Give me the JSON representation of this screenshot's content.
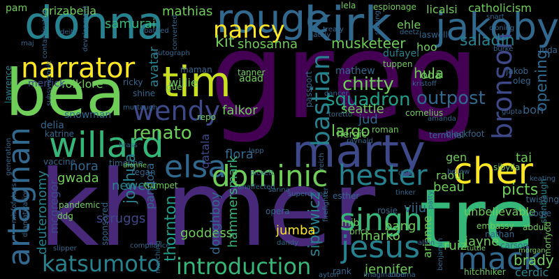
{
  "background": "#000000",
  "words": [
    {
      "text": "greg",
      "color": "#440154"
    },
    {
      "text": "khmer",
      "color": "#482878"
    },
    {
      "text": "donna",
      "color": "#26828e"
    },
    {
      "text": "kirk",
      "color": "#31688e"
    },
    {
      "text": "rouge",
      "color": "#31688e"
    },
    {
      "text": "jakoby",
      "color": "#31688e"
    },
    {
      "text": "bea",
      "color": "#6ece58"
    },
    {
      "text": "tre",
      "color": "#35b779"
    },
    {
      "text": "marty",
      "color": "#3e4989"
    },
    {
      "text": "tim",
      "color": "#c8e020"
    },
    {
      "text": "narrator",
      "color": "#fde725"
    },
    {
      "text": "nancy",
      "color": "#fde725"
    },
    {
      "text": "willard",
      "color": "#35b779"
    },
    {
      "text": "wendy",
      "color": "#3e4989"
    },
    {
      "text": "elsa",
      "color": "#31688e"
    },
    {
      "text": "cher",
      "color": "#fde725"
    },
    {
      "text": "artagnan",
      "color": "#31688e"
    },
    {
      "text": "dominic",
      "color": "#6ece58"
    },
    {
      "text": "hester",
      "color": "#26828e"
    },
    {
      "text": "jesus",
      "color": "#26828e"
    },
    {
      "text": "mack",
      "color": "#31688e"
    },
    {
      "text": "singh",
      "color": "#35b779"
    },
    {
      "text": "bastian",
      "color": "#26828e"
    },
    {
      "text": "bronson",
      "color": "#3e4989"
    },
    {
      "text": "katsumoto",
      "color": "#26828e"
    },
    {
      "text": "introduction",
      "color": "#35b779"
    },
    {
      "text": "renato",
      "color": "#6ece58"
    },
    {
      "text": "chitty",
      "color": "#6ece58"
    },
    {
      "text": "squadron",
      "color": "#1f9e89"
    },
    {
      "text": "outpost",
      "color": "#31688e"
    },
    {
      "text": "musketeer",
      "color": "#6ece58"
    },
    {
      "text": "kit",
      "color": "#6ece58"
    },
    {
      "text": "shosanna",
      "color": "#6ece58"
    },
    {
      "text": "saladin",
      "color": "#26828e"
    },
    {
      "text": "samurai",
      "color": "#35b779"
    },
    {
      "text": "mathias",
      "color": "#6ece58"
    },
    {
      "text": "grizabella",
      "color": "#6ece58"
    },
    {
      "text": "pam",
      "color": "#6ece58"
    },
    {
      "text": "folklore",
      "color": "#6ece58"
    },
    {
      "text": "merrick",
      "color": "#3e4989"
    },
    {
      "text": "mathew",
      "color": "#31688e"
    },
    {
      "text": "jud",
      "color": "#31688e"
    },
    {
      "text": "seattle",
      "color": "#6ece58"
    },
    {
      "text": "hula",
      "color": "#6ece58"
    },
    {
      "text": "opening",
      "color": "#31688e"
    },
    {
      "text": "largo",
      "color": "#6ece58"
    },
    {
      "text": "falkor",
      "color": "#6ece58"
    },
    {
      "text": "joshua",
      "color": "#26828e"
    },
    {
      "text": "flora",
      "color": "#31688e"
    },
    {
      "text": "nora",
      "color": "#31688e"
    },
    {
      "text": "gwada",
      "color": "#6ece58"
    },
    {
      "text": "newest",
      "color": "#26828e"
    },
    {
      "text": "thornton",
      "color": "#1f9e89"
    },
    {
      "text": "goddess",
      "color": "#6ece58"
    },
    {
      "text": "doughboy",
      "color": "#31688e"
    },
    {
      "text": "hammersmark",
      "color": "#35b779"
    },
    {
      "text": "sipowicz",
      "color": "#26828e"
    },
    {
      "text": "viju",
      "color": "#31688e"
    },
    {
      "text": "marko",
      "color": "#6ece58"
    },
    {
      "text": "arianne",
      "color": "#6ece58"
    },
    {
      "text": "jennifer",
      "color": "#6ece58"
    },
    {
      "text": "jumba",
      "color": "#fde725"
    },
    {
      "text": "beau",
      "color": "#6ece58"
    },
    {
      "text": "raoul",
      "color": "#6ece58"
    },
    {
      "text": "unbelievable",
      "color": "#6ece58"
    },
    {
      "text": "picts",
      "color": "#6ece58"
    },
    {
      "text": "brady",
      "color": "#6ece58"
    },
    {
      "text": "cerdic",
      "color": "#26828e"
    },
    {
      "text": "jayne",
      "color": "#6ece58"
    },
    {
      "text": "ruiz",
      "color": "#6ece58"
    },
    {
      "text": "bang",
      "color": "#6ece58"
    },
    {
      "text": "mib",
      "color": "#6ece58"
    },
    {
      "text": "scruggs",
      "color": "#3e4989"
    },
    {
      "text": "deuteronomy",
      "color": "#26828e"
    },
    {
      "text": "mcgregor",
      "color": "#3e4989"
    },
    {
      "text": "avatar",
      "color": "#26828e"
    },
    {
      "text": "willie",
      "color": "#6ece58"
    },
    {
      "text": "adad",
      "color": "#6ece58"
    },
    {
      "text": "oda",
      "color": "#6ece58"
    },
    {
      "text": "hoo",
      "color": "#6ece58"
    },
    {
      "text": "tai",
      "color": "#6ece58"
    },
    {
      "text": "gen",
      "color": "#6ece58"
    },
    {
      "text": "bon",
      "color": "#31688e"
    },
    {
      "text": "pandora",
      "color": "#31688e"
    },
    {
      "text": "qatala",
      "color": "#3e4989"
    },
    {
      "text": "ehle",
      "color": "#6ece58"
    },
    {
      "text": "dufayel",
      "color": "#26828e"
    },
    {
      "text": "tuppen",
      "color": "#6ece58"
    },
    {
      "text": "oleg",
      "color": "#31688e"
    },
    {
      "text": "jakob",
      "color": "#31688e"
    },
    {
      "text": "catholicism",
      "color": "#6ece58"
    },
    {
      "text": "licalsi",
      "color": "#6ece58"
    },
    {
      "text": "espionage",
      "color": "#6ece58"
    },
    {
      "text": "lela",
      "color": "#6ece58"
    },
    {
      "text": "laswell",
      "color": "#31688e"
    },
    {
      "text": "delia",
      "color": "#31688e"
    },
    {
      "text": "katrine",
      "color": "#31688e"
    },
    {
      "text": "snowman",
      "color": "#31688e"
    },
    {
      "text": "lawrence",
      "color": "#26828e"
    },
    {
      "text": "vaccine",
      "color": "#31688e"
    },
    {
      "text": "timeline",
      "color": "#31688e"
    },
    {
      "text": "trumpet",
      "color": "#6ece58"
    },
    {
      "text": "regan",
      "color": "#31688e"
    },
    {
      "text": "dionne",
      "color": "#6ece58"
    },
    {
      "text": "shine",
      "color": "#31688e"
    },
    {
      "text": "gue",
      "color": "#6ece58"
    },
    {
      "text": "ricky",
      "color": "#31688e"
    },
    {
      "text": "maman",
      "color": "#31688e"
    },
    {
      "text": "tanner",
      "color": "#6ece58"
    },
    {
      "text": "repo",
      "color": "#6ece58"
    },
    {
      "text": "roman",
      "color": "#6ece58"
    },
    {
      "text": "heroic",
      "color": "#6ece58"
    },
    {
      "text": "terminal",
      "color": "#31688e"
    },
    {
      "text": "blackfoot",
      "color": "#31688e"
    },
    {
      "text": "sibylla",
      "color": "#6ece58"
    },
    {
      "text": "stenbaugh",
      "color": "#26828e"
    },
    {
      "text": "keating",
      "color": "#31688e"
    },
    {
      "text": "twisting",
      "color": "#31688e"
    },
    {
      "text": "oogie",
      "color": "#31688e"
    },
    {
      "text": "nathan",
      "color": "#31688e"
    },
    {
      "text": "embassy",
      "color": "#6ece58"
    },
    {
      "text": "abdul",
      "color": "#6ece58"
    },
    {
      "text": "morfydd",
      "color": "#6ece58"
    },
    {
      "text": "carson",
      "color": "#31688e"
    },
    {
      "text": "morgan",
      "color": "#6ece58"
    },
    {
      "text": "tuttle",
      "color": "#6ece58"
    },
    {
      "text": "hitchhiker",
      "color": "#6ece58"
    },
    {
      "text": "rank",
      "color": "#31688e"
    },
    {
      "text": "opera",
      "color": "#31688e"
    },
    {
      "text": "esther",
      "color": "#31688e"
    },
    {
      "text": "rosie",
      "color": "#31688e"
    },
    {
      "text": "brick",
      "color": "#6ece58"
    },
    {
      "text": "ddg",
      "color": "#6ece58"
    },
    {
      "text": "pandemic",
      "color": "#6ece58"
    },
    {
      "text": "sponsored",
      "color": "#31688e"
    },
    {
      "text": "misfofelees",
      "color": "#31688e"
    },
    {
      "text": "dramatization",
      "color": "#31688e"
    },
    {
      "text": "slipper",
      "color": "#31688e"
    },
    {
      "text": "superdome",
      "color": "#31688e"
    },
    {
      "text": "unaffected",
      "color": "#31688e"
    },
    {
      "text": "lapp",
      "color": "#31688e"
    },
    {
      "text": "sarina",
      "color": "#31688e"
    },
    {
      "text": "pickett",
      "color": "#31688e"
    },
    {
      "text": "brass",
      "color": "#31688e"
    },
    {
      "text": "autograph",
      "color": "#31688e"
    },
    {
      "text": "converted",
      "color": "#31688e"
    },
    {
      "text": "treaty",
      "color": "#31688e"
    },
    {
      "text": "nately",
      "color": "#31688e"
    },
    {
      "text": "deity",
      "color": "#31688e"
    },
    {
      "text": "maj",
      "color": "#31688e"
    },
    {
      "text": "battled",
      "color": "#31688e"
    },
    {
      "text": "passport",
      "color": "#31688e"
    },
    {
      "text": "burke",
      "color": "#31688e"
    },
    {
      "text": "deetz",
      "color": "#31688e"
    },
    {
      "text": "gupta",
      "color": "#31688e"
    },
    {
      "text": "toretto",
      "color": "#31688e"
    },
    {
      "text": "dancer",
      "color": "#31688e"
    },
    {
      "text": "cornelius",
      "color": "#6ece58"
    },
    {
      "text": "amanda",
      "color": "#31688e"
    },
    {
      "text": "bellow",
      "color": "#31688e"
    },
    {
      "text": "juda",
      "color": "#31688e"
    },
    {
      "text": "ddie",
      "color": "#31688e"
    },
    {
      "text": "tinker",
      "color": "#31688e"
    },
    {
      "text": "allen",
      "color": "#31688e"
    },
    {
      "text": "patty",
      "color": "#31688e"
    },
    {
      "text": "dandy",
      "color": "#31688e"
    },
    {
      "text": "raynald",
      "color": "#31688e"
    },
    {
      "text": "firefighter",
      "color": "#31688e"
    },
    {
      "text": "benjamin",
      "color": "#31688e"
    },
    {
      "text": "imagination",
      "color": "#31688e"
    },
    {
      "text": "cinema",
      "color": "#31688e"
    },
    {
      "text": "compliance",
      "color": "#31688e"
    },
    {
      "text": "marching",
      "color": "#31688e"
    },
    {
      "text": "murtaugh",
      "color": "#31688e"
    },
    {
      "text": "kristoff",
      "color": "#31688e"
    },
    {
      "text": "development",
      "color": "#31688e"
    },
    {
      "text": "contaminated",
      "color": "#31688e"
    },
    {
      "text": "subsyncronic",
      "color": "#31688e"
    },
    {
      "text": "generation",
      "color": "#31688e"
    },
    {
      "text": "ayton",
      "color": "#31688e"
    },
    {
      "text": "snart",
      "color": "#31688e"
    },
    {
      "text": "cloning",
      "color": "#31688e"
    },
    {
      "text": "staring",
      "color": "#31688e"
    },
    {
      "text": "reich",
      "color": "#31688e"
    }
  ]
}
